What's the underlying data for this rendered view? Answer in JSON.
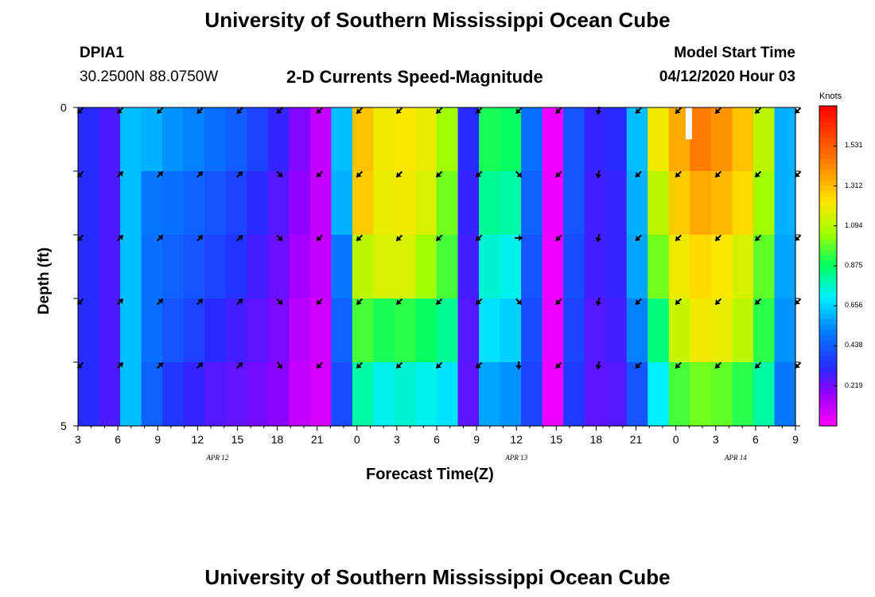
{
  "header": {
    "title": "University of Southern Mississippi Ocean Cube",
    "footer_title": "University of Southern Mississippi Ocean Cube",
    "station": "DPIA1",
    "coords": "30.2500N 88.0750W",
    "subtitle": "2-D Currents Speed-Magnitude",
    "model_label": "Model Start Time",
    "model_time": "04/12/2020 Hour 03"
  },
  "chart_data": {
    "type": "heatmap",
    "title": "2-D Currents Speed-Magnitude",
    "xlabel": "Forecast Time(Z)",
    "ylabel": "Depth (ft)",
    "colorbar_label": "Knots",
    "colorbar_ticks": [
      "1.531",
      "1.312",
      "1.094",
      "0.875",
      "0.656",
      "0.438",
      "0.219"
    ],
    "colorbar_range": [
      0.0,
      1.75
    ],
    "x_tick_labels": [
      "3",
      "6",
      "9",
      "12",
      "15",
      "18",
      "21",
      "0",
      "3",
      "6",
      "9",
      "12",
      "15",
      "18",
      "21",
      "0",
      "3",
      "6",
      "9"
    ],
    "x_hours_range": [
      3,
      57
    ],
    "day_labels": [
      {
        "text": "APR  12",
        "hour": 13.5
      },
      {
        "text": "APR  13",
        "hour": 36
      },
      {
        "text": "APR  14",
        "hour": 52.5
      }
    ],
    "y_tick_labels": [
      "0",
      "5"
    ],
    "depth_range": [
      0,
      5
    ],
    "depth_rows": 5,
    "column_speed_knots": [
      [
        0.33,
        0.33,
        0.33,
        0.33,
        0.33
      ],
      [
        0.27,
        0.27,
        0.27,
        0.27,
        0.27
      ],
      [
        0.62,
        0.62,
        0.62,
        0.62,
        0.62
      ],
      [
        0.6,
        0.5,
        0.48,
        0.48,
        0.45
      ],
      [
        0.55,
        0.48,
        0.45,
        0.42,
        0.35
      ],
      [
        0.52,
        0.45,
        0.42,
        0.37,
        0.3
      ],
      [
        0.48,
        0.42,
        0.38,
        0.32,
        0.26
      ],
      [
        0.44,
        0.38,
        0.34,
        0.28,
        0.24
      ],
      [
        0.38,
        0.32,
        0.28,
        0.25,
        0.22
      ],
      [
        0.3,
        0.26,
        0.23,
        0.21,
        0.19
      ],
      [
        0.2,
        0.18,
        0.15,
        0.12,
        0.1
      ],
      [
        0.1,
        0.1,
        0.1,
        0.08,
        0.07
      ],
      [
        0.62,
        0.6,
        0.5,
        0.45,
        0.4
      ],
      [
        1.3,
        1.28,
        1.1,
        0.95,
        0.8
      ],
      [
        1.2,
        1.18,
        1.15,
        0.9,
        0.72
      ],
      [
        1.22,
        1.2,
        1.15,
        0.92,
        0.75
      ],
      [
        1.18,
        1.15,
        1.05,
        0.88,
        0.72
      ],
      [
        1.05,
        1.0,
        0.95,
        0.82,
        0.68
      ],
      [
        0.32,
        0.3,
        0.28,
        0.26,
        0.25
      ],
      [
        0.9,
        0.82,
        0.75,
        0.68,
        0.58
      ],
      [
        0.88,
        0.8,
        0.72,
        0.65,
        0.55
      ],
      [
        0.48,
        0.45,
        0.42,
        0.4,
        0.38
      ],
      [
        0.03,
        0.03,
        0.03,
        0.03,
        0.03
      ],
      [
        0.42,
        0.42,
        0.4,
        0.38,
        0.36
      ],
      [
        0.3,
        0.28,
        0.28,
        0.26,
        0.25
      ],
      [
        0.32,
        0.3,
        0.3,
        0.28,
        0.26
      ],
      [
        0.62,
        0.6,
        0.58,
        0.52,
        0.42
      ],
      [
        1.2,
        1.1,
        1.0,
        0.85,
        0.7
      ],
      [
        1.35,
        1.28,
        1.2,
        1.12,
        0.95
      ],
      [
        1.45,
        1.35,
        1.25,
        1.2,
        1.0
      ],
      [
        1.4,
        1.32,
        1.22,
        1.18,
        0.98
      ],
      [
        1.3,
        1.25,
        1.15,
        1.1,
        0.92
      ],
      [
        1.1,
        1.05,
        0.98,
        0.92,
        0.8
      ],
      [
        0.6,
        0.6,
        0.58,
        0.55,
        0.5
      ]
    ],
    "arrow_rows_deg": [
      [
        135,
        135,
        135,
        135,
        135
      ],
      [
        135,
        315,
        315,
        315,
        315
      ],
      [
        135,
        315,
        315,
        315,
        315
      ],
      [
        135,
        315,
        315,
        315,
        315
      ],
      [
        135,
        315,
        315,
        315,
        315
      ],
      [
        135,
        45,
        45,
        45,
        60
      ],
      [
        135,
        135,
        135,
        135,
        135
      ],
      [
        135,
        135,
        135,
        135,
        135
      ],
      [
        135,
        135,
        135,
        135,
        135
      ],
      [
        135,
        135,
        135,
        135,
        135
      ],
      [
        135,
        135,
        135,
        135,
        135
      ],
      [
        135,
        45,
        0,
        45,
        90
      ],
      [
        135,
        135,
        135,
        135,
        135
      ],
      [
        100,
        100,
        100,
        100,
        100
      ],
      [
        135,
        135,
        135,
        135,
        135
      ],
      [
        135,
        135,
        135,
        135,
        135
      ],
      [
        135,
        135,
        135,
        135,
        135
      ],
      [
        135,
        135,
        135,
        135,
        135
      ],
      [
        135,
        135,
        135,
        135,
        135
      ]
    ]
  }
}
